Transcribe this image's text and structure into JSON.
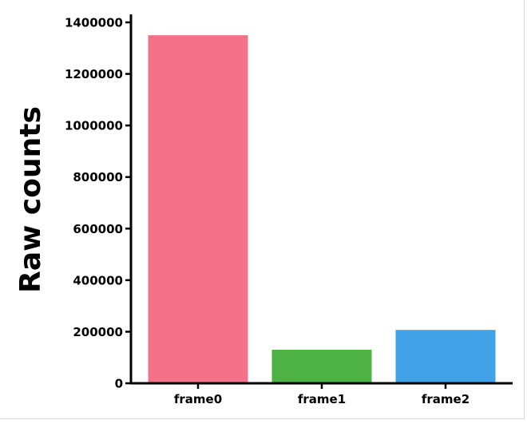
{
  "chart_data": {
    "type": "bar",
    "categories": [
      "frame0",
      "frame1",
      "frame2"
    ],
    "values": [
      1350000,
      130000,
      207000
    ],
    "colors": [
      "#f4718a",
      "#4db243",
      "#41a2e8"
    ],
    "title": "",
    "xlabel": "",
    "ylabel": "Raw counts",
    "ylim": [
      0,
      1400000
    ],
    "yticks": [
      0,
      200000,
      400000,
      600000,
      800000,
      1000000,
      1200000,
      1400000
    ],
    "ytick_labels": [
      "0",
      "200000",
      "400000",
      "600000",
      "800000",
      "1000000",
      "1200000",
      "1400000"
    ],
    "grid": false,
    "legend": "none"
  }
}
